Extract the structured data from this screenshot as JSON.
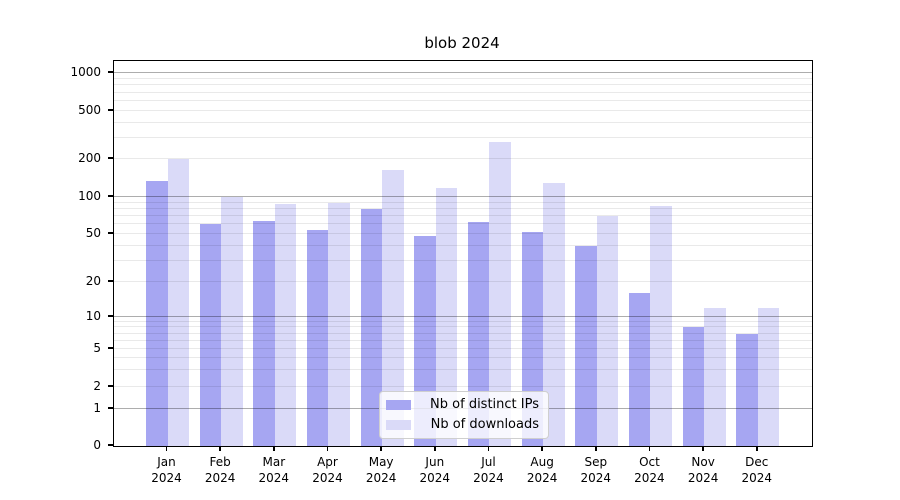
{
  "figure": {
    "title": "blob 2024"
  },
  "chart_data": {
    "type": "bar",
    "title": "blob 2024",
    "categories": [
      "Jan 2024",
      "Feb 2024",
      "Mar 2024",
      "Apr 2024",
      "May 2024",
      "Jun 2024",
      "Jul 2024",
      "Aug 2024",
      "Sep 2024",
      "Oct 2024",
      "Nov 2024",
      "Dec 2024"
    ],
    "series": [
      {
        "name": "Nb of distinct IPs",
        "color": "#a6a6f2",
        "values": [
          135,
          60,
          64,
          54,
          80,
          48,
          63,
          52,
          40,
          16,
          8,
          7
        ]
      },
      {
        "name": "Nb of downloads",
        "color": "#dadaf8",
        "values": [
          200,
          100,
          88,
          90,
          165,
          118,
          275,
          130,
          70,
          85,
          12,
          12
        ]
      }
    ],
    "xlabel": "",
    "ylabel": "",
    "yticks": [
      0,
      1,
      2,
      5,
      10,
      20,
      50,
      100,
      200,
      500,
      1000
    ],
    "yscale": "symlog",
    "ylim": [
      0,
      1250
    ],
    "grid": true,
    "legend_position": "lower center",
    "colors": {
      "axis": "#000000",
      "text": "#000000",
      "major_grid": "#ababab",
      "minor_grid": "#e8e8e8",
      "background": "#ffffff"
    }
  }
}
